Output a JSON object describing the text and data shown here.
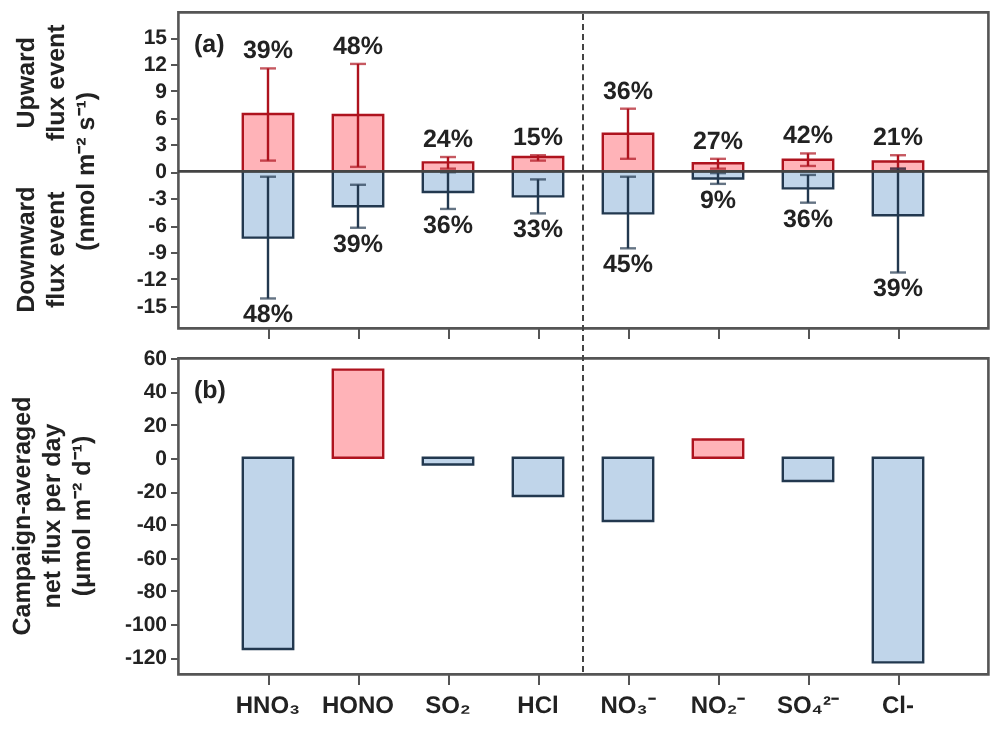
{
  "chart_data": [
    {
      "type": "bar",
      "title": "(a)",
      "ylabel": "Upward flux event\nDownward flux event\n(nmol m⁻² s⁻¹)",
      "categories": [
        "HNO₃",
        "HONO",
        "SO₂",
        "HCl",
        "NO₃⁻",
        "NO₂⁻",
        "SO₄²⁻",
        "Cl-"
      ],
      "stacked": true,
      "series": [
        {
          "color": "#ffb3b8",
          "values": [
            6.4,
            6.3,
            1.0,
            1.6,
            4.2,
            0.9,
            1.3,
            1.1
          ],
          "errors": [
            [
              1.2,
              11.5
            ],
            [
              0.5,
              12
            ],
            [
              0.3,
              1.6
            ],
            [
              1.2,
              1.8
            ],
            [
              1.4,
              7
            ],
            [
              0.3,
              1.4
            ],
            [
              0.6,
              2
            ],
            [
              0.3,
              1.8
            ]
          ]
        },
        {
          "color": "#c0d5ea",
          "values": [
            -7.4,
            -3.9,
            -2.3,
            -2.8,
            -4.7,
            -0.8,
            -1.9,
            -4.9
          ],
          "errors": [
            [
              -14.2,
              -0.6
            ],
            [
              -6.3,
              -1.5
            ],
            [
              -4.2,
              -0.1
            ],
            [
              -4.7,
              -0.9
            ],
            [
              -8.6,
              -0.6
            ],
            [
              -1.4,
              -0.2
            ],
            [
              -3.5,
              -0.4
            ],
            [
              -11.3,
              0.3
            ]
          ]
        }
      ],
      "annotations": [
        {
          "text": "39%",
          "x": "HNO₃",
          "y": 11.5
        },
        {
          "text": "48%",
          "x": "HONO",
          "y": 12
        },
        {
          "text": "24%",
          "x": "SO₂",
          "y": 1.6
        },
        {
          "text": "15%",
          "x": "HCl",
          "y": 1.8
        },
        {
          "text": "36%",
          "x": "NO₃⁻",
          "y": 7
        },
        {
          "text": "27%",
          "x": "NO₂⁻",
          "y": 1.4
        },
        {
          "text": "42%",
          "x": "SO₄²⁻",
          "y": 2
        },
        {
          "text": "21%",
          "x": "Cl-",
          "y": 1.8
        },
        {
          "text": "48%",
          "x": "HNO₃",
          "y": -14.2
        },
        {
          "text": "39%",
          "x": "HONO",
          "y": -6.3
        },
        {
          "text": "36%",
          "x": "SO₂",
          "y": -4.2
        },
        {
          "text": "33%",
          "x": "HCl",
          "y": -4.7
        },
        {
          "text": "45%",
          "x": "NO₃⁻",
          "y": -8.6
        },
        {
          "text": "9%",
          "x": "NO₂⁻",
          "y": -1.4
        },
        {
          "text": "36%",
          "x": "SO₄²⁻",
          "y": -3.5
        },
        {
          "text": "39%",
          "x": "Cl-",
          "y": -11.3
        }
      ],
      "ylim": [
        -17.5,
        17.8
      ],
      "yticks": [
        -15,
        -12,
        -9,
        -6,
        -3,
        0,
        3,
        6,
        9,
        12,
        15
      ],
      "ref_lines": [
        {
          "axis": "y",
          "value": 0,
          "line_style": "solid"
        }
      ],
      "tick_labels": "y"
    },
    {
      "type": "bar",
      "title": "(b)",
      "ylabel": "Campaign-averaged\nnet flux per day\n(μmol m⁻² d⁻¹)",
      "categories": [
        "HNO₃",
        "HONO",
        "SO₂",
        "HCl",
        "NO₃⁻",
        "NO₂⁻",
        "SO₄²⁻",
        "Cl-"
      ],
      "values": [
        -115,
        53,
        -4,
        -23,
        -38,
        11,
        -14,
        -123
      ],
      "colors": [
        "#c0d5ea",
        "#ffb3b8",
        "#c0d5ea",
        "#c0d5ea",
        "#c0d5ea",
        "#ffb3b8",
        "#c0d5ea",
        "#c0d5ea"
      ],
      "ylim": [
        -130,
        60
      ],
      "yticks": [
        -120,
        -100,
        -80,
        -60,
        -40,
        -20,
        0,
        20,
        40,
        60
      ]
    }
  ]
}
